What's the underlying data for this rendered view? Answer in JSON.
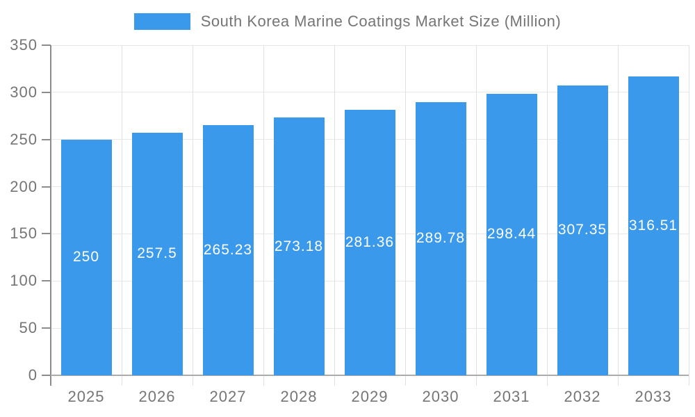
{
  "chart_data": {
    "type": "bar",
    "title": "South Korea Marine Coatings Market Size (Million)",
    "categories": [
      "2025",
      "2026",
      "2027",
      "2028",
      "2029",
      "2030",
      "2031",
      "2032",
      "2033"
    ],
    "values": [
      250,
      257.5,
      265.23,
      273.18,
      281.36,
      289.78,
      298.44,
      307.35,
      316.51
    ],
    "value_labels": [
      "250",
      "257.5",
      "265.23",
      "273.18",
      "281.36",
      "289.78",
      "298.44",
      "307.35",
      "316.51"
    ],
    "xlabel": "",
    "ylabel": "",
    "ylim": [
      0,
      350
    ],
    "ytick_step": 50,
    "yticks": [
      0,
      50,
      100,
      150,
      200,
      250,
      300,
      350
    ],
    "grid": true,
    "legend_position": "top-center",
    "colors": {
      "bar": "#3B99EC",
      "value_text": "#FFFFFF",
      "axis_line": "#8C8C8C",
      "baseline": "#ABABAB",
      "grid_line": "#E8E8E8",
      "category_line": "#E0E0E0",
      "tick_text": "#757575",
      "title_text": "#757575",
      "background": "#FFFFFF"
    }
  }
}
